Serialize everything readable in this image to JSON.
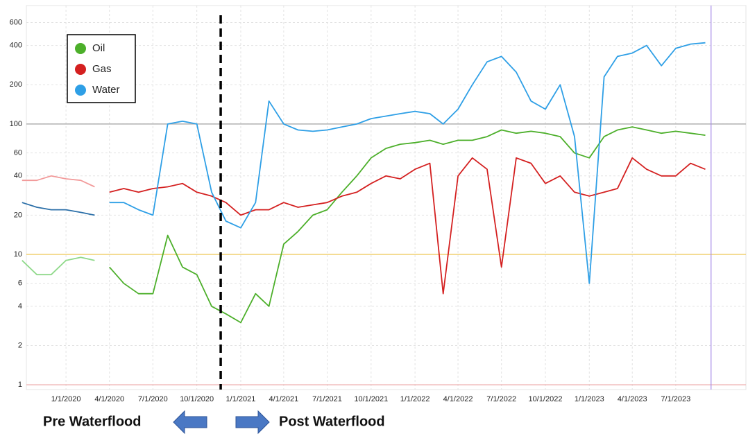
{
  "chart_data": {
    "type": "line",
    "log_scale": true,
    "grid": true,
    "legend_position": "upper left",
    "faded_before": "3/10/2020",
    "x": [
      "10/1/2019",
      "11/1/2019",
      "12/1/2019",
      "1/1/2020",
      "2/1/2020",
      "3/1/2020",
      "4/1/2020",
      "5/1/2020",
      "6/1/2020",
      "7/1/2020",
      "8/1/2020",
      "9/1/2020",
      "10/1/2020",
      "11/1/2020",
      "12/1/2020",
      "1/1/2021",
      "2/1/2021",
      "3/1/2021",
      "4/1/2021",
      "5/1/2021",
      "6/1/2021",
      "7/1/2021",
      "8/1/2021",
      "9/1/2021",
      "10/1/2021",
      "11/1/2021",
      "12/1/2021",
      "1/1/2022",
      "2/1/2022",
      "3/1/2022",
      "4/1/2022",
      "5/1/2022",
      "6/1/2022",
      "7/1/2022",
      "8/1/2022",
      "9/1/2022",
      "10/1/2022",
      "11/1/2022",
      "12/1/2022",
      "1/1/2023",
      "2/1/2023",
      "3/1/2023",
      "4/1/2023",
      "5/1/2023",
      "6/1/2023",
      "7/1/2023",
      "8/1/2023",
      "9/1/2023"
    ],
    "series": [
      {
        "name": "Oil",
        "color": "#4caf2a",
        "faded_color": "#8fd98a",
        "values": [
          9,
          7,
          7,
          9,
          9.5,
          9,
          8,
          6,
          5,
          5,
          14,
          8,
          7,
          4,
          3.5,
          3,
          5,
          4,
          12,
          15,
          20,
          22,
          30,
          40,
          55,
          65,
          70,
          72,
          75,
          70,
          75,
          75,
          80,
          90,
          85,
          88,
          85,
          80,
          60,
          55,
          80,
          90,
          95,
          90,
          85,
          88,
          85,
          82
        ]
      },
      {
        "name": "Gas",
        "color": "#d42020",
        "faded_color": "#f29a9a",
        "values": [
          37,
          37,
          40,
          38,
          37,
          33,
          30,
          32,
          30,
          32,
          33,
          35,
          30,
          28,
          25,
          20,
          22,
          22,
          25,
          23,
          24,
          25,
          28,
          30,
          35,
          40,
          38,
          45,
          50,
          5,
          40,
          55,
          45,
          8,
          55,
          50,
          35,
          40,
          30,
          28,
          30,
          32,
          55,
          45,
          40,
          40,
          50,
          45
        ]
      },
      {
        "name": "Water",
        "color": "#2e9fe6",
        "faded_color": "#2b6fa8",
        "values": [
          25,
          23,
          22,
          22,
          21,
          20,
          25,
          25,
          22,
          20,
          100,
          105,
          100,
          30,
          18,
          16,
          25,
          150,
          100,
          90,
          88,
          90,
          95,
          100,
          110,
          115,
          120,
          125,
          120,
          100,
          130,
          200,
          300,
          330,
          250,
          150,
          130,
          200,
          80,
          6,
          230,
          330,
          350,
          400,
          280,
          380,
          410,
          420
        ]
      }
    ],
    "xlim": [
      "10/10/2019",
      "11/25/2023"
    ],
    "xticks": [
      "1/1/2020",
      "4/1/2020",
      "7/1/2020",
      "10/1/2020",
      "1/1/2021",
      "4/1/2021",
      "7/1/2021",
      "10/1/2021",
      "1/1/2022",
      "4/1/2022",
      "7/1/2022",
      "10/1/2022",
      "1/1/2023",
      "4/1/2023",
      "7/1/2023"
    ],
    "ylim": [
      0.92,
      810
    ],
    "yticks": [
      1,
      2,
      4,
      6,
      10,
      20,
      40,
      60,
      100,
      200,
      400,
      600
    ],
    "reference_lines": [
      {
        "value": 100,
        "color": "#b0b0b0"
      },
      {
        "value": 10,
        "color": "#f0d070"
      },
      {
        "value": 1,
        "color": "#f0b8b8"
      }
    ],
    "vertical_lines": [
      {
        "x": "11/20/2020",
        "color": "#000000",
        "dashed": true
      },
      {
        "x": "9/13/2023",
        "color": "#a58be8",
        "dashed": false
      }
    ],
    "annotations": [
      "Pre Waterflood",
      "Post Waterflood"
    ]
  }
}
